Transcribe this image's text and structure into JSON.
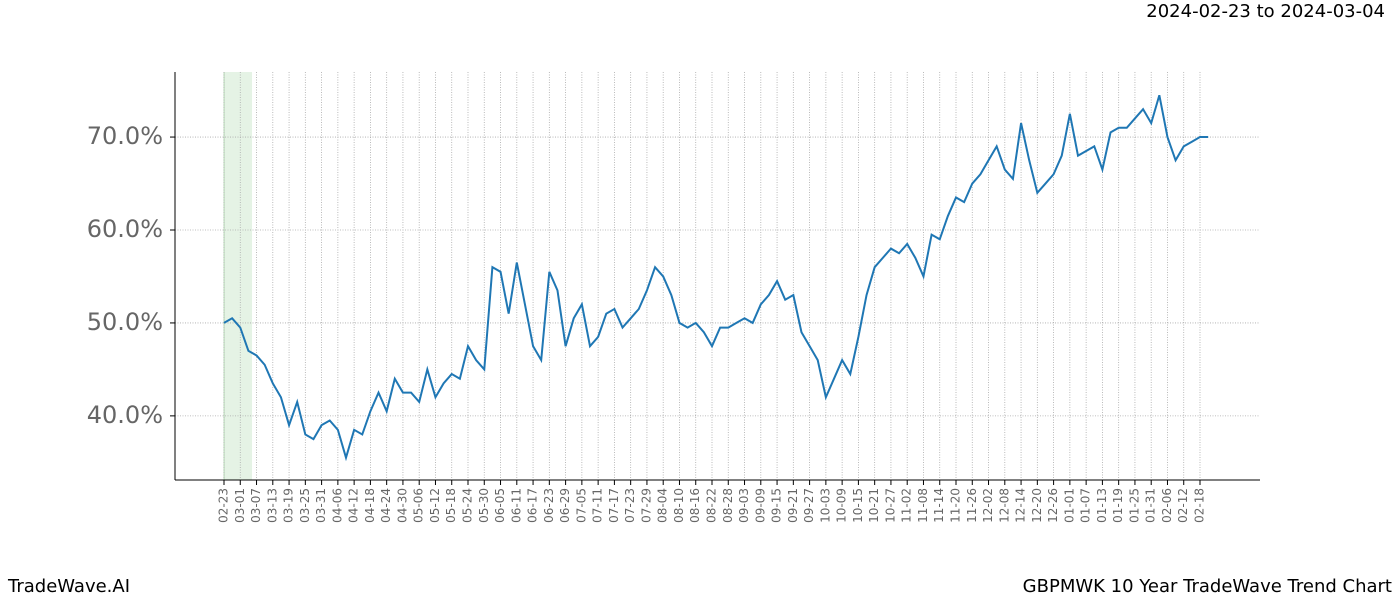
{
  "chart_data": {
    "type": "line",
    "title": "2024-02-23 to 2024-03-04",
    "footer_left": "TradeWave.AI",
    "footer_right": "GBPMWK 10 Year TradeWave Trend Chart",
    "categories": [
      "02-23",
      null,
      "03-01",
      null,
      "03-07",
      null,
      "03-13",
      null,
      "03-19",
      null,
      "03-25",
      null,
      "03-31",
      null,
      "04-06",
      null,
      "04-12",
      null,
      "04-18",
      null,
      "04-24",
      null,
      "04-30",
      null,
      "05-06",
      null,
      "05-12",
      null,
      "05-18",
      null,
      "05-24",
      null,
      "05-30",
      null,
      "06-05",
      null,
      "06-11",
      null,
      "06-17",
      null,
      "06-23",
      null,
      "06-29",
      null,
      "07-05",
      null,
      "07-11",
      null,
      "07-17",
      null,
      "07-23",
      null,
      "07-29",
      null,
      "08-04",
      null,
      "08-10",
      null,
      "08-16",
      null,
      "08-22",
      null,
      "08-28",
      null,
      "09-03",
      null,
      "09-09",
      null,
      "09-15",
      null,
      "09-21",
      null,
      "09-27",
      null,
      "10-03",
      null,
      "10-09",
      null,
      "10-15",
      null,
      "10-21",
      null,
      "10-27",
      null,
      "11-02",
      null,
      "11-08",
      null,
      "11-14",
      null,
      "11-20",
      null,
      "11-26",
      null,
      "12-02",
      null,
      "12-08",
      null,
      "12-14",
      null,
      "12-20",
      null,
      "12-26",
      null,
      "01-01",
      null,
      "01-07",
      null,
      "01-13",
      null,
      "01-19",
      null,
      "01-25",
      null,
      "01-31",
      null,
      "02-06",
      null,
      "02-12",
      null,
      "02-18",
      null
    ],
    "values": [
      50,
      50.5,
      49.5,
      47,
      46.5,
      45.5,
      43.5,
      42,
      39,
      41.5,
      38,
      37.5,
      39,
      39.5,
      38.5,
      35.5,
      38.5,
      38,
      40.5,
      42.5,
      40.5,
      44,
      42.5,
      42.5,
      41.5,
      45,
      42,
      43.5,
      44.5,
      44,
      47.5,
      46,
      45,
      56,
      55.5,
      51,
      56.5,
      52,
      47.5,
      46,
      55.5,
      53.5,
      47.5,
      50.5,
      52,
      47.5,
      48.5,
      51,
      51.5,
      49.5,
      50.5,
      51.5,
      53.5,
      56,
      55,
      53,
      50,
      49.5,
      50,
      49,
      47.5,
      49.5,
      49.5,
      50,
      50.5,
      50,
      52,
      53,
      54.5,
      52.5,
      53,
      49,
      47.5,
      46,
      42,
      44,
      46,
      44.5,
      48.5,
      53,
      56,
      57,
      58,
      57.5,
      58.5,
      57,
      55,
      59.5,
      59,
      61.5,
      63.5,
      63,
      65,
      66,
      67.5,
      69,
      66.5,
      65.5,
      71.5,
      67.5,
      64,
      65,
      66,
      68,
      72.5,
      68,
      68.5,
      69,
      66.5,
      70.5,
      71,
      71,
      72,
      73,
      71.5,
      74.5,
      70,
      67.5,
      69,
      69.5,
      70,
      70
    ],
    "color": "#1f77b4",
    "ylim": [
      33.1,
      77.0
    ],
    "yticks": [
      {
        "value": 40,
        "label": "40.0%"
      },
      {
        "value": 50,
        "label": "50.0%"
      },
      {
        "value": 60,
        "label": "60.0%"
      },
      {
        "value": 70,
        "label": "70.0%"
      }
    ],
    "grid": true
  }
}
